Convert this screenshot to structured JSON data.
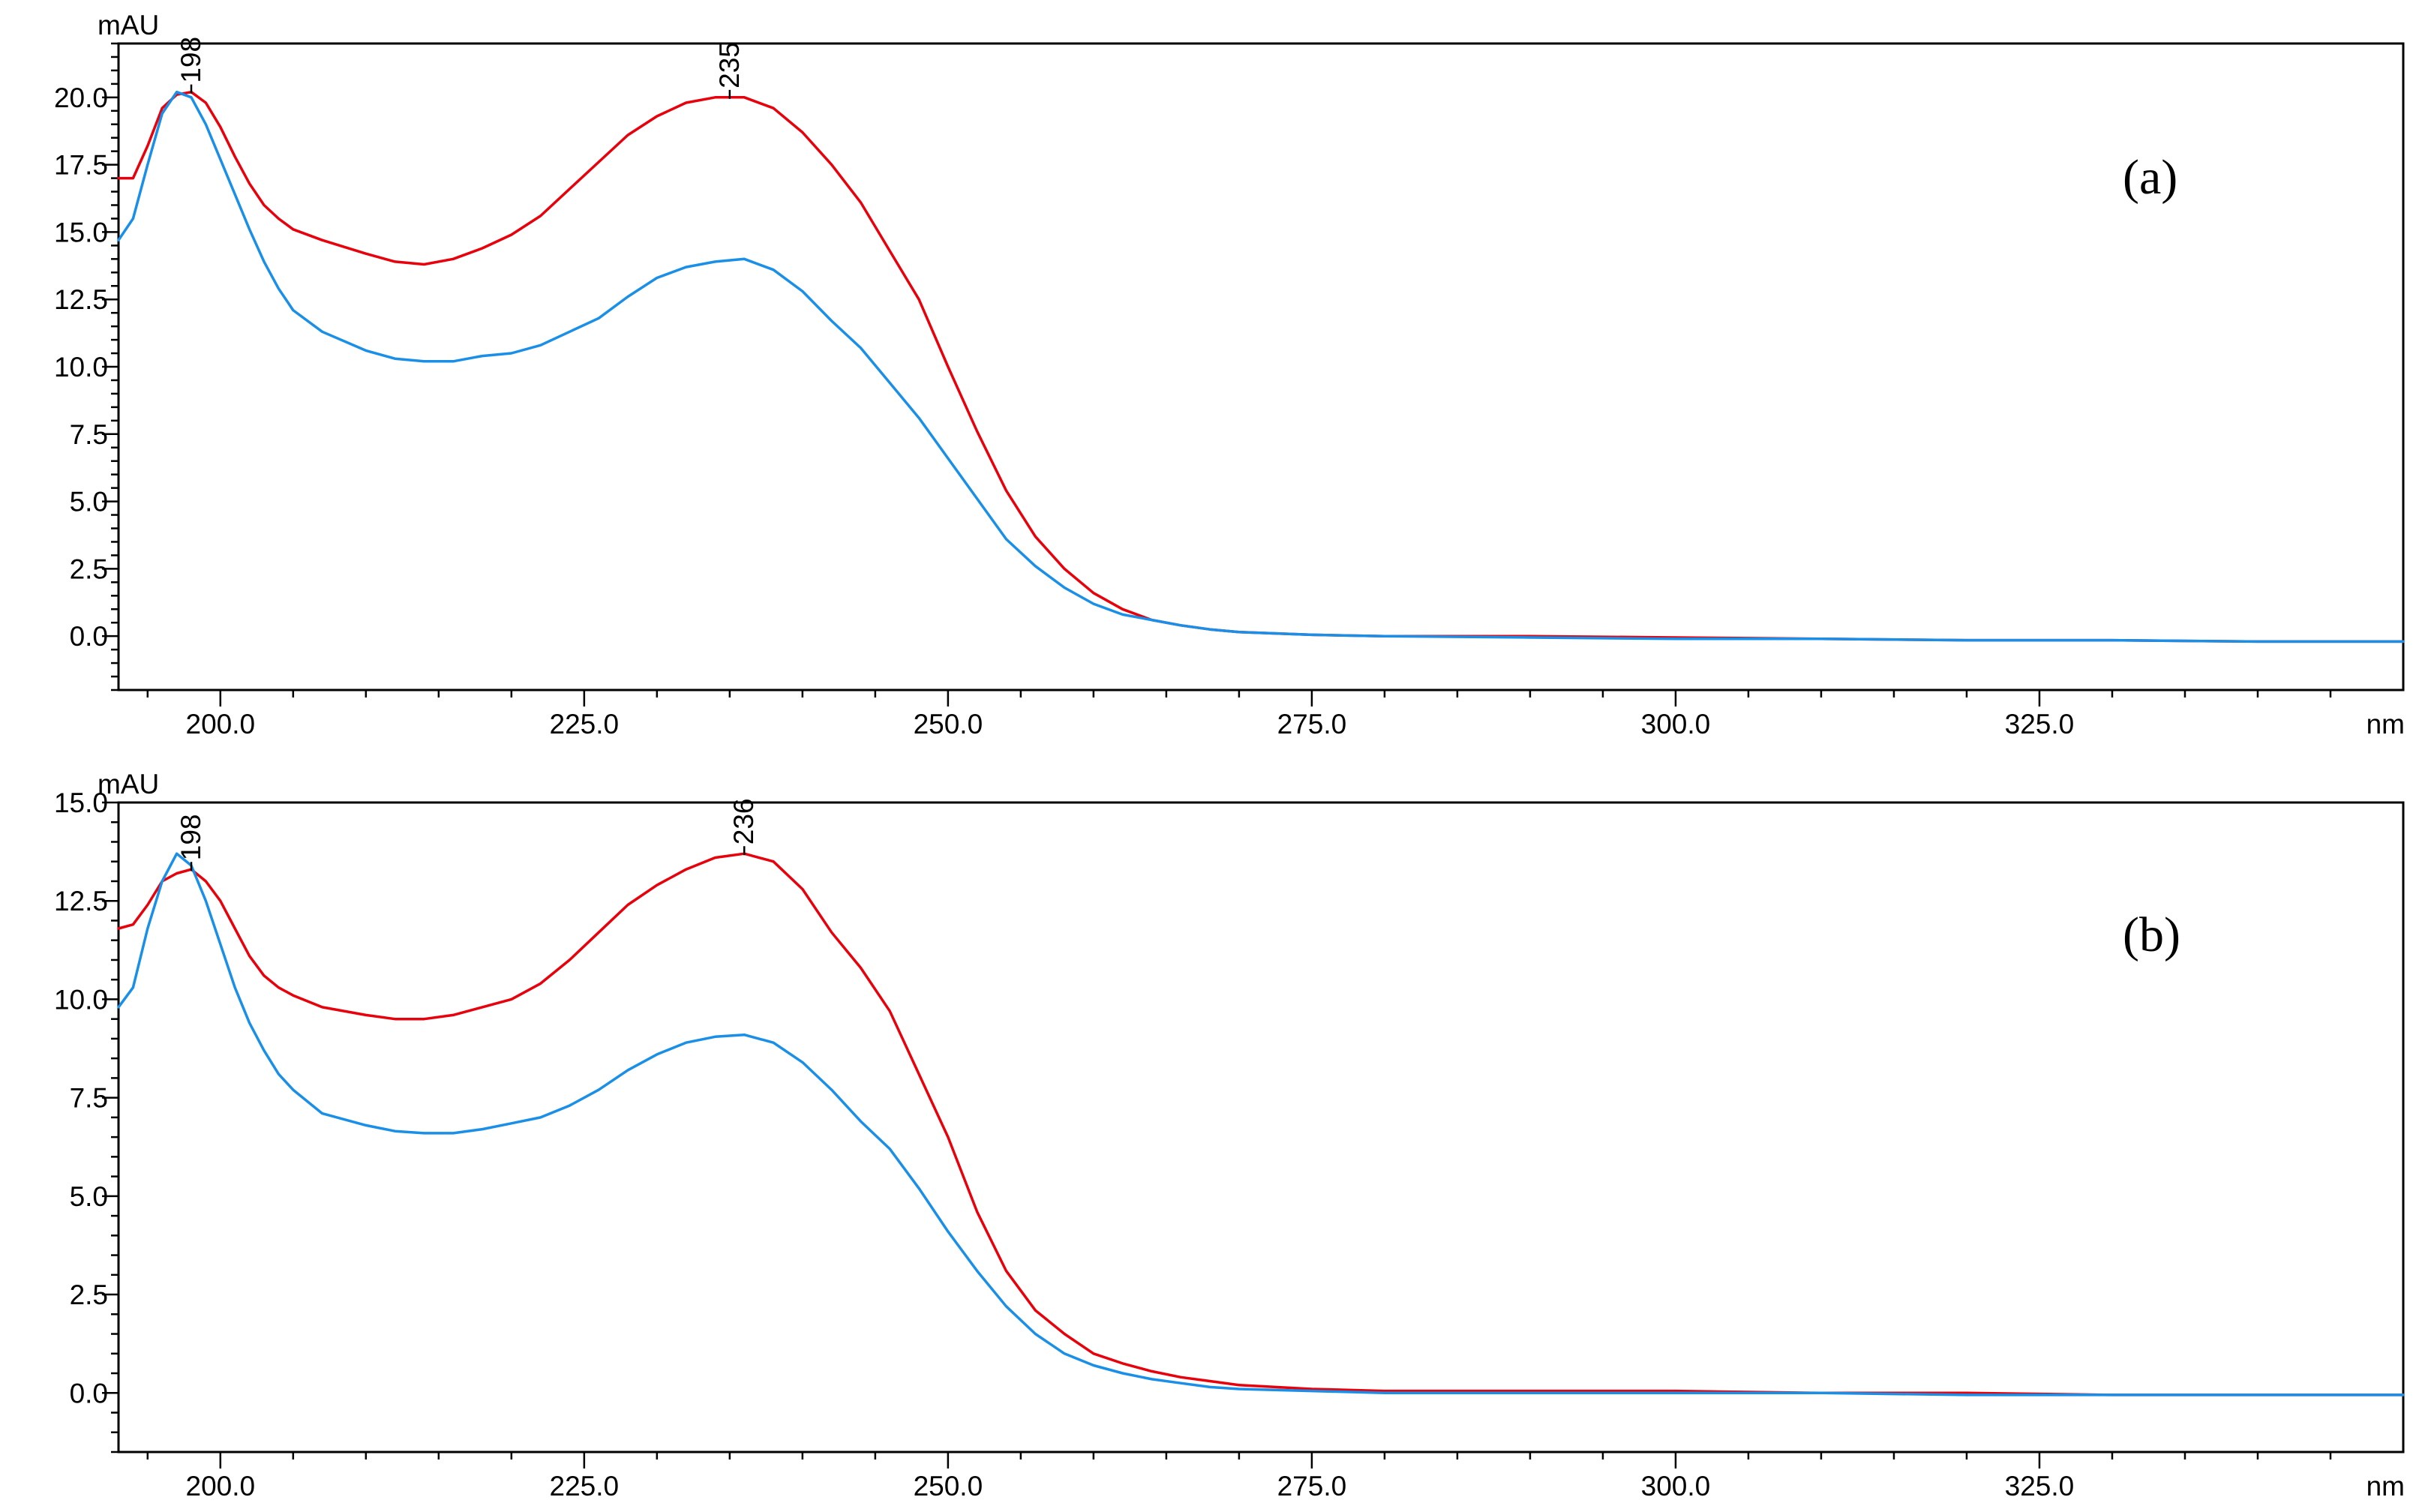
{
  "chart_data": [
    {
      "type": "line",
      "panel_label": "(a)",
      "y_unit": "mAU",
      "x_unit": "nm",
      "xlim": [
        193,
        350
      ],
      "ylim": [
        -2,
        22
      ],
      "grid": false,
      "x_ticks": [
        "200.0",
        "225.0",
        "250.0",
        "275.0",
        "300.0",
        "325.0"
      ],
      "y_ticks": [
        "0.0",
        "2.5",
        "5.0",
        "7.5",
        "10.0",
        "12.5",
        "15.0",
        "17.5",
        "20.0"
      ],
      "peak_labels": [
        {
          "text": "198",
          "x": 198,
          "y": 20.2
        },
        {
          "text": "235",
          "x": 235,
          "y": 20.0
        }
      ],
      "series": [
        {
          "color": "#e8000b",
          "points": [
            [
              193,
              17.0
            ],
            [
              194,
              17.0
            ],
            [
              195,
              18.2
            ],
            [
              196,
              19.6
            ],
            [
              197,
              20.1
            ],
            [
              198,
              20.2
            ],
            [
              199,
              19.8
            ],
            [
              200,
              18.9
            ],
            [
              201,
              17.8
            ],
            [
              202,
              16.8
            ],
            [
              203,
              16.0
            ],
            [
              204,
              15.5
            ],
            [
              205,
              15.1
            ],
            [
              207,
              14.7
            ],
            [
              210,
              14.2
            ],
            [
              212,
              13.9
            ],
            [
              214,
              13.8
            ],
            [
              216,
              14.0
            ],
            [
              218,
              14.4
            ],
            [
              220,
              14.9
            ],
            [
              222,
              15.6
            ],
            [
              224,
              16.6
            ],
            [
              226,
              17.6
            ],
            [
              228,
              18.6
            ],
            [
              230,
              19.3
            ],
            [
              232,
              19.8
            ],
            [
              234,
              20.0
            ],
            [
              235,
              20.0
            ],
            [
              236,
              20.0
            ],
            [
              238,
              19.6
            ],
            [
              240,
              18.7
            ],
            [
              242,
              17.5
            ],
            [
              244,
              16.1
            ],
            [
              246,
              14.3
            ],
            [
              248,
              12.5
            ],
            [
              250,
              10.0
            ],
            [
              252,
              7.6
            ],
            [
              254,
              5.4
            ],
            [
              256,
              3.7
            ],
            [
              258,
              2.5
            ],
            [
              260,
              1.6
            ],
            [
              262,
              1.0
            ],
            [
              264,
              0.6
            ],
            [
              266,
              0.4
            ],
            [
              268,
              0.25
            ],
            [
              270,
              0.15
            ],
            [
              275,
              0.05
            ],
            [
              280,
              0.0
            ],
            [
              290,
              0.0
            ],
            [
              300,
              -0.05
            ],
            [
              310,
              -0.1
            ],
            [
              320,
              -0.15
            ],
            [
              330,
              -0.15
            ],
            [
              340,
              -0.2
            ],
            [
              350,
              -0.2
            ]
          ]
        },
        {
          "color": "#1a8fe8",
          "points": [
            [
              193,
              14.7
            ],
            [
              194,
              15.5
            ],
            [
              195,
              17.5
            ],
            [
              196,
              19.4
            ],
            [
              197,
              20.2
            ],
            [
              198,
              20.0
            ],
            [
              199,
              19.0
            ],
            [
              200,
              17.7
            ],
            [
              201,
              16.4
            ],
            [
              202,
              15.1
            ],
            [
              203,
              13.9
            ],
            [
              204,
              12.9
            ],
            [
              205,
              12.1
            ],
            [
              207,
              11.3
            ],
            [
              210,
              10.6
            ],
            [
              212,
              10.3
            ],
            [
              214,
              10.2
            ],
            [
              216,
              10.2
            ],
            [
              218,
              10.4
            ],
            [
              220,
              10.5
            ],
            [
              222,
              10.8
            ],
            [
              224,
              11.3
            ],
            [
              226,
              11.8
            ],
            [
              228,
              12.6
            ],
            [
              230,
              13.3
            ],
            [
              232,
              13.7
            ],
            [
              234,
              13.9
            ],
            [
              236,
              14.0
            ],
            [
              238,
              13.6
            ],
            [
              240,
              12.8
            ],
            [
              242,
              11.7
            ],
            [
              244,
              10.7
            ],
            [
              246,
              9.4
            ],
            [
              248,
              8.1
            ],
            [
              250,
              6.6
            ],
            [
              252,
              5.1
            ],
            [
              254,
              3.6
            ],
            [
              256,
              2.6
            ],
            [
              258,
              1.8
            ],
            [
              260,
              1.2
            ],
            [
              262,
              0.8
            ],
            [
              264,
              0.6
            ],
            [
              266,
              0.4
            ],
            [
              268,
              0.25
            ],
            [
              270,
              0.15
            ],
            [
              275,
              0.05
            ],
            [
              280,
              0.0
            ],
            [
              290,
              -0.05
            ],
            [
              300,
              -0.1
            ],
            [
              310,
              -0.1
            ],
            [
              320,
              -0.15
            ],
            [
              330,
              -0.15
            ],
            [
              340,
              -0.2
            ],
            [
              350,
              -0.2
            ]
          ]
        }
      ]
    },
    {
      "type": "line",
      "panel_label": "(b)",
      "y_unit": "mAU",
      "x_unit": "nm",
      "xlim": [
        193,
        350
      ],
      "ylim": [
        -1.5,
        15
      ],
      "grid": false,
      "x_ticks": [
        "200.0",
        "225.0",
        "250.0",
        "275.0",
        "300.0",
        "325.0"
      ],
      "y_ticks": [
        "0.0",
        "2.5",
        "5.0",
        "7.5",
        "10.0",
        "12.5",
        "15.0"
      ],
      "peak_labels": [
        {
          "text": "198",
          "x": 198,
          "y": 13.3
        },
        {
          "text": "236",
          "x": 236,
          "y": 13.7
        }
      ],
      "series": [
        {
          "color": "#e8000b",
          "points": [
            [
              193,
              11.8
            ],
            [
              194,
              11.9
            ],
            [
              195,
              12.4
            ],
            [
              196,
              13.0
            ],
            [
              197,
              13.2
            ],
            [
              198,
              13.3
            ],
            [
              199,
              13.0
            ],
            [
              200,
              12.5
            ],
            [
              201,
              11.8
            ],
            [
              202,
              11.1
            ],
            [
              203,
              10.6
            ],
            [
              204,
              10.3
            ],
            [
              205,
              10.1
            ],
            [
              207,
              9.8
            ],
            [
              210,
              9.6
            ],
            [
              212,
              9.5
            ],
            [
              214,
              9.5
            ],
            [
              216,
              9.6
            ],
            [
              218,
              9.8
            ],
            [
              220,
              10.0
            ],
            [
              222,
              10.4
            ],
            [
              224,
              11.0
            ],
            [
              226,
              11.7
            ],
            [
              228,
              12.4
            ],
            [
              230,
              12.9
            ],
            [
              232,
              13.3
            ],
            [
              234,
              13.6
            ],
            [
              236,
              13.7
            ],
            [
              238,
              13.5
            ],
            [
              240,
              12.8
            ],
            [
              242,
              11.7
            ],
            [
              244,
              10.8
            ],
            [
              246,
              9.7
            ],
            [
              248,
              8.1
            ],
            [
              250,
              6.5
            ],
            [
              252,
              4.6
            ],
            [
              254,
              3.1
            ],
            [
              256,
              2.1
            ],
            [
              258,
              1.5
            ],
            [
              260,
              1.0
            ],
            [
              262,
              0.75
            ],
            [
              264,
              0.55
            ],
            [
              266,
              0.4
            ],
            [
              268,
              0.3
            ],
            [
              270,
              0.2
            ],
            [
              275,
              0.1
            ],
            [
              280,
              0.05
            ],
            [
              290,
              0.05
            ],
            [
              300,
              0.05
            ],
            [
              310,
              0.0
            ],
            [
              320,
              0.0
            ],
            [
              330,
              -0.05
            ],
            [
              340,
              -0.05
            ],
            [
              350,
              -0.05
            ]
          ]
        },
        {
          "color": "#1a8fe8",
          "points": [
            [
              193,
              9.8
            ],
            [
              194,
              10.3
            ],
            [
              195,
              11.8
            ],
            [
              196,
              13.0
            ],
            [
              197,
              13.7
            ],
            [
              198,
              13.4
            ],
            [
              199,
              12.5
            ],
            [
              200,
              11.4
            ],
            [
              201,
              10.3
            ],
            [
              202,
              9.4
            ],
            [
              203,
              8.7
            ],
            [
              204,
              8.1
            ],
            [
              205,
              7.7
            ],
            [
              207,
              7.1
            ],
            [
              210,
              6.8
            ],
            [
              212,
              6.65
            ],
            [
              214,
              6.6
            ],
            [
              216,
              6.6
            ],
            [
              218,
              6.7
            ],
            [
              220,
              6.85
            ],
            [
              222,
              7.0
            ],
            [
              224,
              7.3
            ],
            [
              226,
              7.7
            ],
            [
              228,
              8.2
            ],
            [
              230,
              8.6
            ],
            [
              232,
              8.9
            ],
            [
              234,
              9.05
            ],
            [
              236,
              9.1
            ],
            [
              238,
              8.9
            ],
            [
              240,
              8.4
            ],
            [
              242,
              7.7
            ],
            [
              244,
              6.9
            ],
            [
              246,
              6.2
            ],
            [
              248,
              5.2
            ],
            [
              250,
              4.1
            ],
            [
              252,
              3.1
            ],
            [
              254,
              2.2
            ],
            [
              256,
              1.5
            ],
            [
              258,
              1.0
            ],
            [
              260,
              0.7
            ],
            [
              262,
              0.5
            ],
            [
              264,
              0.35
            ],
            [
              266,
              0.25
            ],
            [
              268,
              0.15
            ],
            [
              270,
              0.1
            ],
            [
              275,
              0.05
            ],
            [
              280,
              0.0
            ],
            [
              290,
              0.0
            ],
            [
              300,
              0.0
            ],
            [
              310,
              0.0
            ],
            [
              320,
              -0.05
            ],
            [
              330,
              -0.05
            ],
            [
              340,
              -0.05
            ],
            [
              350,
              -0.05
            ]
          ]
        }
      ]
    }
  ]
}
